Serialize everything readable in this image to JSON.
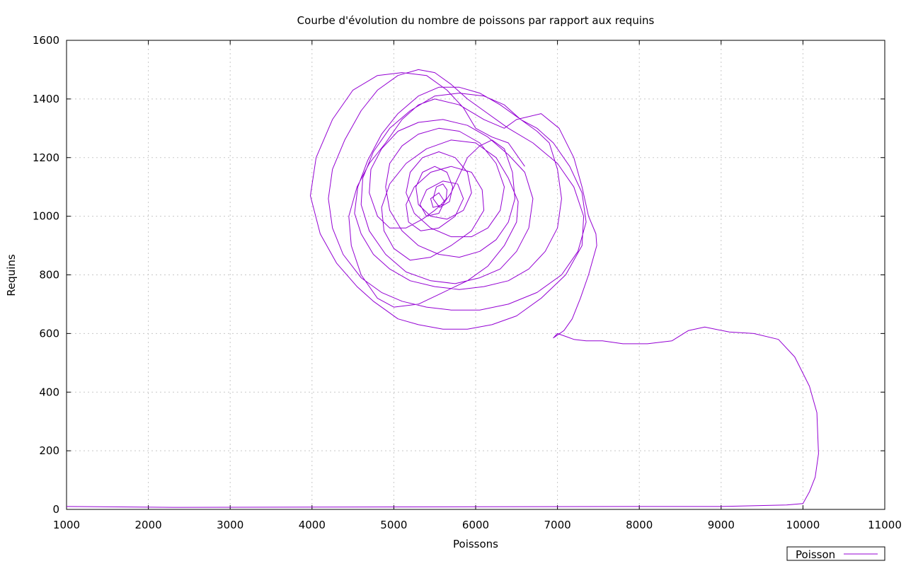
{
  "chart_data": {
    "type": "line",
    "title": "Courbe d'évolution du nombre de poissons par rapport aux requins",
    "xlabel": "Poissons",
    "ylabel": "Requins",
    "xlim": [
      1000,
      11000
    ],
    "ylim": [
      0,
      1600
    ],
    "xticks": [
      1000,
      2000,
      3000,
      4000,
      5000,
      6000,
      7000,
      8000,
      9000,
      10000,
      11000
    ],
    "yticks": [
      0,
      200,
      400,
      600,
      800,
      1000,
      1200,
      1400,
      1600
    ],
    "grid": true,
    "legend_position": "bottom-right-outside",
    "series": [
      {
        "name": "Poisson",
        "color": "#9400d3",
        "points": [
          [
            1000,
            10
          ],
          [
            2300,
            7
          ],
          [
            4000,
            8
          ],
          [
            6000,
            9
          ],
          [
            8000,
            10
          ],
          [
            9000,
            10
          ],
          [
            9800,
            15
          ],
          [
            10000,
            20
          ],
          [
            10080,
            60
          ],
          [
            10150,
            110
          ],
          [
            10190,
            190
          ],
          [
            10170,
            330
          ],
          [
            10080,
            420
          ],
          [
            9900,
            520
          ],
          [
            9700,
            580
          ],
          [
            9400,
            600
          ],
          [
            9100,
            605
          ],
          [
            8800,
            622
          ],
          [
            8600,
            610
          ],
          [
            8400,
            575
          ],
          [
            8100,
            565
          ],
          [
            7800,
            565
          ],
          [
            7550,
            575
          ],
          [
            7350,
            575
          ],
          [
            7200,
            580
          ],
          [
            7100,
            590
          ],
          [
            7000,
            600
          ],
          [
            6950,
            585
          ],
          [
            7080,
            610
          ],
          [
            7180,
            650
          ],
          [
            7280,
            720
          ],
          [
            7380,
            800
          ],
          [
            7480,
            900
          ],
          [
            7470,
            940
          ],
          [
            7380,
            1000
          ],
          [
            7300,
            1100
          ],
          [
            7200,
            1200
          ],
          [
            7020,
            1300
          ],
          [
            6800,
            1350
          ],
          [
            6500,
            1330
          ],
          [
            6350,
            1300
          ],
          [
            6100,
            1330
          ],
          [
            5800,
            1380
          ],
          [
            5500,
            1400
          ],
          [
            5300,
            1380
          ],
          [
            5100,
            1330
          ],
          [
            4900,
            1250
          ],
          [
            4700,
            1180
          ],
          [
            4550,
            1100
          ],
          [
            4450,
            1000
          ],
          [
            4480,
            900
          ],
          [
            4600,
            800
          ],
          [
            4800,
            720
          ],
          [
            5000,
            690
          ],
          [
            5300,
            700
          ],
          [
            5600,
            740
          ],
          [
            5900,
            780
          ],
          [
            6150,
            830
          ],
          [
            6350,
            900
          ],
          [
            6500,
            980
          ],
          [
            6520,
            1050
          ],
          [
            6400,
            1130
          ],
          [
            6250,
            1200
          ],
          [
            6000,
            1250
          ],
          [
            5700,
            1260
          ],
          [
            5400,
            1230
          ],
          [
            5150,
            1180
          ],
          [
            4950,
            1110
          ],
          [
            4850,
            1030
          ],
          [
            4880,
            950
          ],
          [
            5000,
            890
          ],
          [
            5200,
            850
          ],
          [
            5450,
            860
          ],
          [
            5700,
            900
          ],
          [
            5950,
            950
          ],
          [
            6100,
            1020
          ],
          [
            6080,
            1090
          ],
          [
            5950,
            1150
          ],
          [
            5700,
            1170
          ],
          [
            5450,
            1150
          ],
          [
            5250,
            1100
          ],
          [
            5150,
            1040
          ],
          [
            5180,
            980
          ],
          [
            5330,
            950
          ],
          [
            5550,
            960
          ],
          [
            5750,
            1000
          ],
          [
            5850,
            1060
          ],
          [
            5780,
            1110
          ],
          [
            5600,
            1120
          ],
          [
            5400,
            1090
          ],
          [
            5320,
            1040
          ],
          [
            5400,
            1000
          ],
          [
            5550,
            1010
          ],
          [
            5620,
            1050
          ],
          [
            5550,
            1080
          ],
          [
            5450,
            1060
          ],
          [
            5480,
            1030
          ],
          [
            5600,
            1040
          ],
          [
            5700,
            1080
          ],
          [
            5800,
            1140
          ],
          [
            5900,
            1200
          ],
          [
            6050,
            1240
          ],
          [
            6200,
            1260
          ],
          [
            6350,
            1230
          ],
          [
            6450,
            1150
          ],
          [
            6480,
            1060
          ],
          [
            6400,
            980
          ],
          [
            6250,
            920
          ],
          [
            6050,
            880
          ],
          [
            5800,
            860
          ],
          [
            5550,
            870
          ],
          [
            5300,
            900
          ],
          [
            5100,
            950
          ],
          [
            4950,
            1020
          ],
          [
            4900,
            1100
          ],
          [
            4950,
            1180
          ],
          [
            5100,
            1240
          ],
          [
            5300,
            1280
          ],
          [
            5550,
            1300
          ],
          [
            5800,
            1290
          ],
          [
            6050,
            1250
          ],
          [
            6250,
            1180
          ],
          [
            6350,
            1100
          ],
          [
            6300,
            1020
          ],
          [
            6150,
            960
          ],
          [
            5950,
            930
          ],
          [
            5700,
            930
          ],
          [
            5450,
            960
          ],
          [
            5250,
            1010
          ],
          [
            5150,
            1080
          ],
          [
            5200,
            1150
          ],
          [
            5350,
            1200
          ],
          [
            5550,
            1220
          ],
          [
            5750,
            1200
          ],
          [
            5900,
            1150
          ],
          [
            5950,
            1080
          ],
          [
            5850,
            1020
          ],
          [
            5650,
            990
          ],
          [
            5450,
            1000
          ],
          [
            5300,
            1040
          ],
          [
            5270,
            1100
          ],
          [
            5350,
            1150
          ],
          [
            5500,
            1170
          ],
          [
            5650,
            1150
          ],
          [
            5720,
            1100
          ],
          [
            5680,
            1050
          ],
          [
            5560,
            1030
          ],
          [
            5480,
            1060
          ],
          [
            5520,
            1100
          ],
          [
            5600,
            1110
          ],
          [
            5650,
            1090
          ],
          [
            5640,
            1060
          ],
          [
            5580,
            1040
          ],
          [
            5500,
            1020
          ],
          [
            5350,
            990
          ],
          [
            5150,
            960
          ],
          [
            4950,
            960
          ],
          [
            4800,
            1000
          ],
          [
            4700,
            1080
          ],
          [
            4720,
            1160
          ],
          [
            4850,
            1230
          ],
          [
            5050,
            1290
          ],
          [
            5300,
            1320
          ],
          [
            5600,
            1330
          ],
          [
            5900,
            1310
          ],
          [
            6150,
            1270
          ],
          [
            6400,
            1210
          ],
          [
            6600,
            1150
          ],
          [
            6700,
            1060
          ],
          [
            6650,
            960
          ],
          [
            6500,
            880
          ],
          [
            6300,
            820
          ],
          [
            6050,
            790
          ],
          [
            5750,
            770
          ],
          [
            5450,
            780
          ],
          [
            5150,
            810
          ],
          [
            4900,
            870
          ],
          [
            4700,
            950
          ],
          [
            4600,
            1040
          ],
          [
            4620,
            1130
          ],
          [
            4750,
            1220
          ],
          [
            4950,
            1300
          ],
          [
            5200,
            1360
          ],
          [
            5500,
            1410
          ],
          [
            5800,
            1420
          ],
          [
            6100,
            1410
          ],
          [
            6350,
            1380
          ],
          [
            6550,
            1330
          ],
          [
            6750,
            1290
          ],
          [
            6900,
            1250
          ],
          [
            7000,
            1160
          ],
          [
            7050,
            1060
          ],
          [
            7000,
            960
          ],
          [
            6850,
            880
          ],
          [
            6650,
            820
          ],
          [
            6400,
            780
          ],
          [
            6100,
            760
          ],
          [
            5800,
            750
          ],
          [
            5500,
            760
          ],
          [
            5200,
            780
          ],
          [
            4950,
            820
          ],
          [
            4750,
            870
          ],
          [
            4600,
            940
          ],
          [
            4520,
            1010
          ],
          [
            4560,
            1100
          ],
          [
            4680,
            1190
          ],
          [
            4850,
            1280
          ],
          [
            5050,
            1350
          ],
          [
            5300,
            1410
          ],
          [
            5550,
            1440
          ],
          [
            5800,
            1440
          ],
          [
            6050,
            1420
          ],
          [
            6300,
            1380
          ],
          [
            6550,
            1330
          ],
          [
            6750,
            1300
          ],
          [
            6950,
            1250
          ],
          [
            7150,
            1170
          ],
          [
            7300,
            1080
          ],
          [
            7350,
            980
          ],
          [
            7250,
            880
          ],
          [
            7050,
            800
          ],
          [
            6750,
            740
          ],
          [
            6400,
            700
          ],
          [
            6050,
            680
          ],
          [
            5700,
            680
          ],
          [
            5400,
            690
          ],
          [
            5100,
            710
          ],
          [
            4850,
            740
          ],
          [
            4600,
            790
          ],
          [
            4380,
            870
          ],
          [
            4250,
            960
          ],
          [
            4200,
            1060
          ],
          [
            4250,
            1160
          ],
          [
            4400,
            1260
          ],
          [
            4600,
            1360
          ],
          [
            4800,
            1430
          ],
          [
            5050,
            1480
          ],
          [
            5300,
            1500
          ],
          [
            5500,
            1490
          ],
          [
            5700,
            1450
          ],
          [
            5900,
            1400
          ],
          [
            6100,
            1360
          ],
          [
            6400,
            1300
          ],
          [
            6700,
            1250
          ],
          [
            7000,
            1180
          ],
          [
            7200,
            1100
          ],
          [
            7320,
            1000
          ],
          [
            7300,
            900
          ],
          [
            7100,
            800
          ],
          [
            6800,
            720
          ],
          [
            6500,
            660
          ],
          [
            6200,
            630
          ],
          [
            5900,
            615
          ],
          [
            5600,
            615
          ],
          [
            5300,
            630
          ],
          [
            5050,
            650
          ],
          [
            4900,
            680
          ],
          [
            4750,
            710
          ],
          [
            4550,
            760
          ],
          [
            4300,
            840
          ],
          [
            4100,
            940
          ],
          [
            3980,
            1070
          ],
          [
            4050,
            1200
          ],
          [
            4250,
            1330
          ],
          [
            4500,
            1430
          ],
          [
            4800,
            1480
          ],
          [
            5100,
            1490
          ],
          [
            5400,
            1480
          ],
          [
            5650,
            1430
          ],
          [
            5850,
            1370
          ],
          [
            6000,
            1300
          ],
          [
            6200,
            1270
          ],
          [
            6400,
            1250
          ],
          [
            6600,
            1170
          ]
        ]
      }
    ]
  }
}
